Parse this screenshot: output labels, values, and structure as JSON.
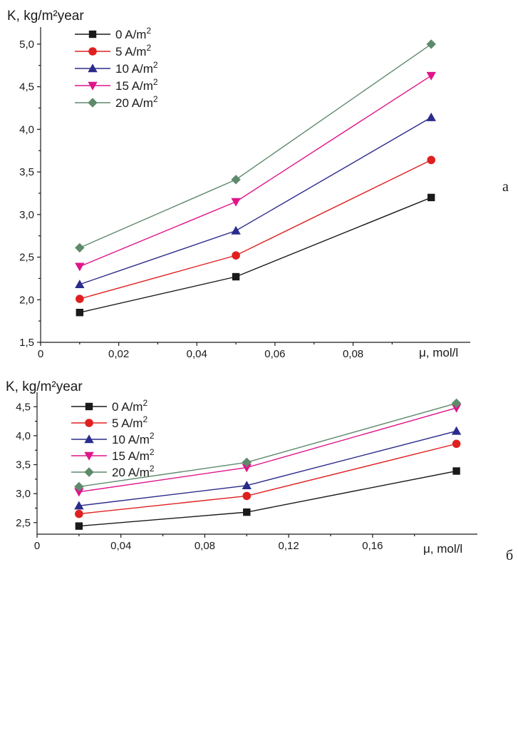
{
  "chart_data": [
    {
      "type": "line",
      "panel_label": "a",
      "ylabel": "K, kg/m²year",
      "xlabel": "μ, mol/l",
      "x": [
        0.01,
        0.05,
        0.1
      ],
      "xlim": [
        0,
        0.11
      ],
      "ylim": [
        1.5,
        5.2
      ],
      "x_ticks": [
        0,
        0.02,
        0.04,
        0.06,
        0.08
      ],
      "x_tick_labels": [
        "0",
        "0,02",
        "0,04",
        "0,06",
        "0,08"
      ],
      "y_ticks": [
        1.5,
        2.0,
        2.5,
        3.0,
        3.5,
        4.0,
        4.5,
        5.0
      ],
      "y_tick_labels": [
        "1,5",
        "2,0",
        "2,5",
        "3,0",
        "3,5",
        "4,0",
        "4,5",
        "5,0"
      ],
      "legend_position": "top-left",
      "grid": false,
      "series": [
        {
          "name": "0 A/m",
          "sup": "2",
          "values": [
            1.85,
            2.27,
            3.2
          ],
          "color": "#1a1a1a",
          "marker": "square"
        },
        {
          "name": "5 A/m",
          "sup": "2",
          "values": [
            2.01,
            2.52,
            3.64
          ],
          "color": "#e02020",
          "marker": "circle"
        },
        {
          "name": "10 A/m",
          "sup": "2",
          "values": [
            2.18,
            2.81,
            4.14
          ],
          "color": "#2b2b8c",
          "marker": "triangle-up"
        },
        {
          "name": "15 A/m",
          "sup": "2",
          "values": [
            2.39,
            3.15,
            4.63
          ],
          "color": "#e0158a",
          "marker": "triangle-down"
        },
        {
          "name": "20 A/m",
          "sup": "2",
          "values": [
            2.61,
            3.41,
            5.0
          ],
          "color": "#5e8a6c",
          "marker": "diamond"
        }
      ]
    },
    {
      "type": "line",
      "panel_label": "б",
      "ylabel": "K, kg/m²year",
      "xlabel": "μ, mol/l",
      "x": [
        0.02,
        0.1,
        0.2
      ],
      "xlim": [
        0,
        0.21
      ],
      "ylim": [
        2.3,
        4.75
      ],
      "x_ticks": [
        0,
        0.04,
        0.08,
        0.12,
        0.16
      ],
      "x_tick_labels": [
        "0",
        "0,04",
        "0,08",
        "0,12",
        "0,16"
      ],
      "y_ticks": [
        2.5,
        3.0,
        3.5,
        4.0,
        4.5
      ],
      "y_tick_labels": [
        "2,5",
        "3,0",
        "3,5",
        "4,0",
        "4,5"
      ],
      "legend_position": "top-left",
      "grid": false,
      "series": [
        {
          "name": "0 A/m",
          "sup": "2",
          "values": [
            2.44,
            2.68,
            3.39
          ],
          "color": "#1a1a1a",
          "marker": "square"
        },
        {
          "name": "5 A/m",
          "sup": "2",
          "values": [
            2.65,
            2.96,
            3.86
          ],
          "color": "#e02020",
          "marker": "circle"
        },
        {
          "name": "10 A/m",
          "sup": "2",
          "values": [
            2.79,
            3.14,
            4.08
          ],
          "color": "#2b2b8c",
          "marker": "triangle-up"
        },
        {
          "name": "15 A/m",
          "sup": "2",
          "values": [
            3.03,
            3.45,
            4.48
          ],
          "color": "#e0158a",
          "marker": "triangle-down"
        },
        {
          "name": "20 A/m",
          "sup": "2",
          "values": [
            3.12,
            3.54,
            4.56
          ],
          "color": "#5e8a6c",
          "marker": "diamond"
        }
      ]
    }
  ]
}
